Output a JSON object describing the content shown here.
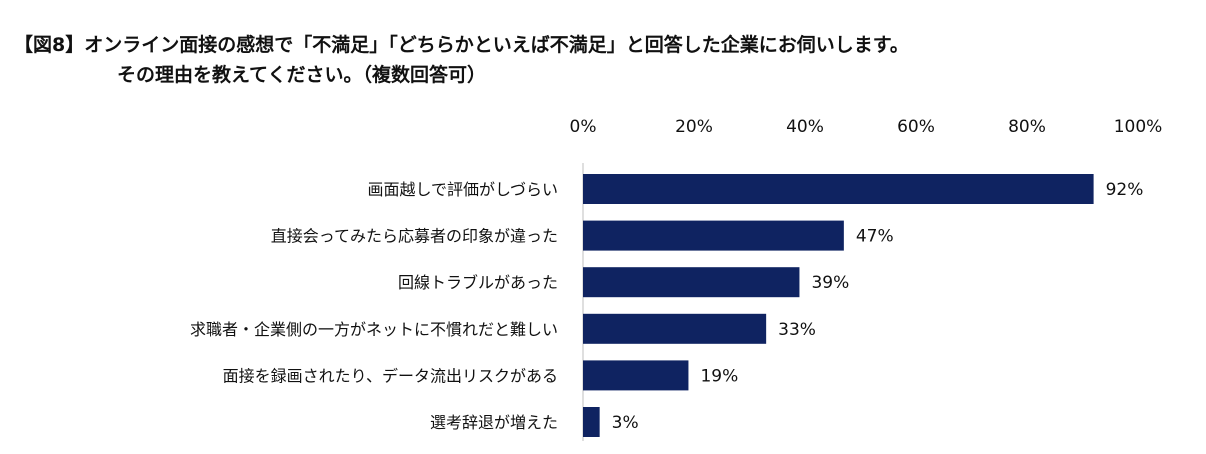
{
  "title": {
    "line1": "【図8】オンライン面接の感想で「不満足」「どちらかといえば不満足」と回答した企業にお伺いします。",
    "line2": "その理由を教えてください。（複数回答可）"
  },
  "chart_data": {
    "type": "bar",
    "orientation": "horizontal",
    "categories": [
      "画面越しで評価がしづらい",
      "直接会ってみたら応募者の印象が違った",
      "回線トラブルがあった",
      "求職者・企業側の一方がネットに不慣れだと難しい",
      "面接を録画されたり、データ流出リスクがある",
      "選考辞退が増えた"
    ],
    "values": [
      92,
      47,
      39,
      33,
      19,
      3
    ],
    "value_suffix": "%",
    "xlim": [
      0,
      100
    ],
    "ticks": [
      0,
      20,
      40,
      60,
      80,
      100
    ],
    "tick_labels": [
      "0%",
      "20%",
      "40%",
      "60%",
      "80%",
      "100%"
    ],
    "axis_position": "top",
    "grid": false,
    "bar_color": "#0f2361",
    "axis_color": "#bfbfbf"
  }
}
